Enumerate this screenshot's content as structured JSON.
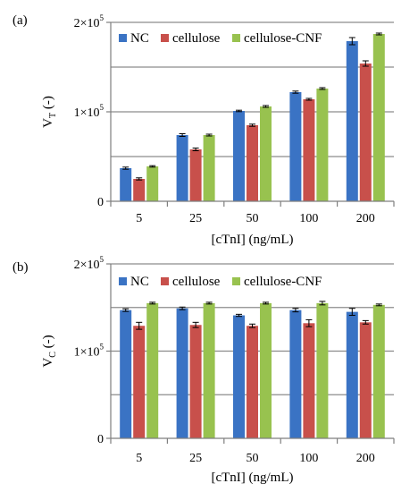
{
  "colors": {
    "NC": "#3a73c4",
    "cellulose": "#c8504b",
    "cellulose-CNF": "#98c24f",
    "grid": "#8c8c8c",
    "axis": "#7f7f7f",
    "error": "#000000"
  },
  "chart_data": [
    {
      "type": "bar",
      "panel_label": "(a)",
      "categories": [
        "5",
        "25",
        "50",
        "100",
        "200"
      ],
      "xlabel": "[cTnI] (ng/mL)",
      "ylabel": {
        "main": "V",
        "sub": "T",
        "suffix": " (-)"
      },
      "ylim": [
        0,
        200000
      ],
      "yticks": [
        {
          "value": 0,
          "base": "0",
          "exp": ""
        },
        {
          "value": 100000,
          "base": "1×10",
          "exp": "5"
        },
        {
          "value": 200000,
          "base": "2×10",
          "exp": "5"
        }
      ],
      "grid": true,
      "legend_position": "top",
      "series": [
        {
          "name": "NC",
          "color_key": "NC",
          "values": [
            37000,
            74000,
            101000,
            122000,
            179000
          ],
          "errors": [
            1200,
            1500,
            800,
            1200,
            4000
          ]
        },
        {
          "name": "cellulose",
          "color_key": "cellulose",
          "values": [
            25000,
            58000,
            85000,
            114000,
            154000
          ],
          "errors": [
            1200,
            1500,
            1200,
            1000,
            3000
          ]
        },
        {
          "name": "cellulose-CNF",
          "color_key": "cellulose-CNF",
          "values": [
            39000,
            74000,
            106000,
            126000,
            187000
          ],
          "errors": [
            800,
            1000,
            1000,
            1000,
            1000
          ]
        }
      ]
    },
    {
      "type": "bar",
      "panel_label": "(b)",
      "categories": [
        "5",
        "25",
        "50",
        "100",
        "200"
      ],
      "xlabel": "[cTnI] (ng/mL)",
      "ylabel": {
        "main": "V",
        "sub": "C",
        "suffix": " (-)"
      },
      "ylim": [
        0,
        200000
      ],
      "yticks": [
        {
          "value": 0,
          "base": "0",
          "exp": ""
        },
        {
          "value": 100000,
          "base": "1×10",
          "exp": "5"
        },
        {
          "value": 200000,
          "base": "2×10",
          "exp": "5"
        }
      ],
      "grid": true,
      "legend_position": "top",
      "series": [
        {
          "name": "NC",
          "color_key": "NC",
          "values": [
            147000,
            149000,
            141000,
            147000,
            145000
          ],
          "errors": [
            1500,
            1500,
            1200,
            2000,
            4000
          ]
        },
        {
          "name": "cellulose",
          "color_key": "cellulose",
          "values": [
            129000,
            130000,
            129000,
            132000,
            133000
          ],
          "errors": [
            4000,
            3000,
            2000,
            4000,
            2000
          ]
        },
        {
          "name": "cellulose-CNF",
          "color_key": "cellulose-CNF",
          "values": [
            155000,
            155000,
            155000,
            155000,
            153000
          ],
          "errors": [
            1000,
            1000,
            1000,
            2000,
            1000
          ]
        }
      ]
    }
  ]
}
